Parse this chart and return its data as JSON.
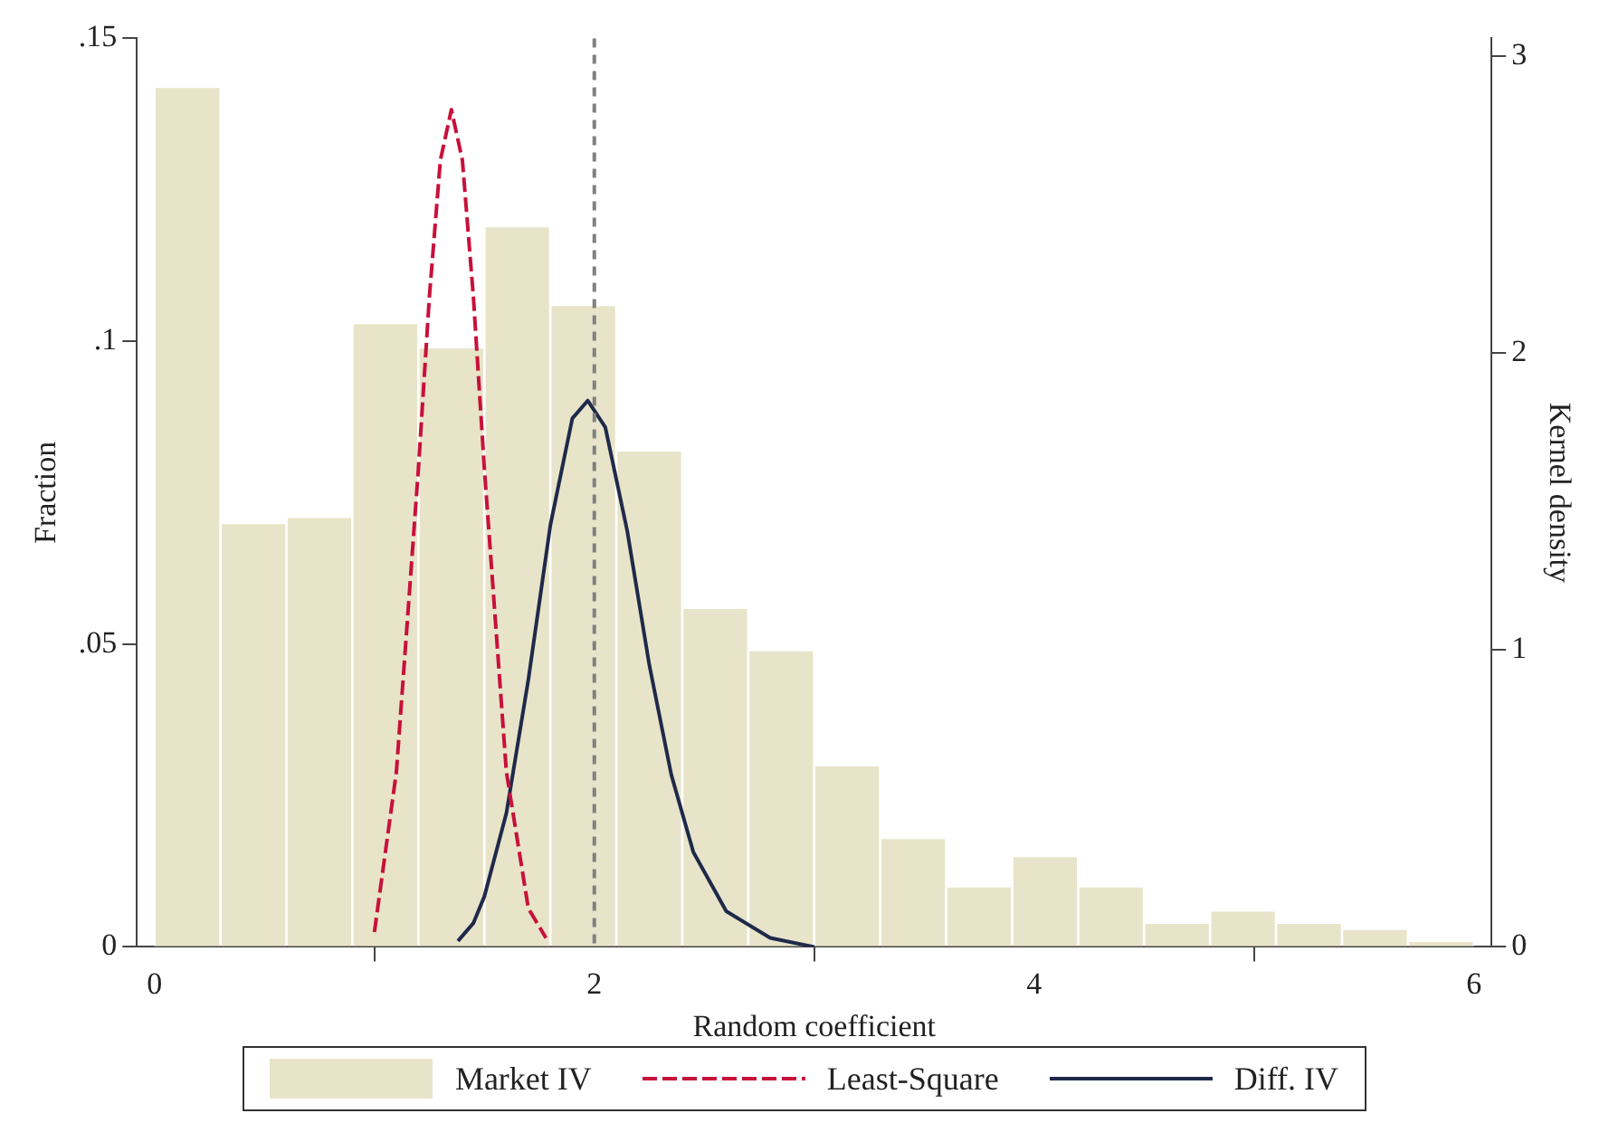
{
  "chart_data": {
    "type": "histogram",
    "xlabel": "Random coefficient",
    "ylabel": "Fraction",
    "y2label": "Kernel density",
    "bins": [
      0,
      0.3,
      0.6,
      0.9,
      1.2,
      1.5,
      1.8,
      2.1,
      2.4,
      2.7,
      3.0,
      3.3,
      3.6,
      3.9,
      4.2,
      4.5,
      4.8,
      5.1,
      5.4,
      5.7,
      6.0
    ],
    "series": [
      {
        "name": "Market IV",
        "color": "#e8e4c9",
        "values": [
          0.142,
          0.07,
          0.071,
          0.103,
          0.099,
          0.119,
          0.106,
          0.082,
          0.056,
          0.049,
          0.03,
          0.018,
          0.01,
          0.015,
          0.01,
          0.004,
          0.006,
          0.004,
          0.003,
          0.001
        ]
      },
      {
        "name": "Least-Square",
        "type": "line",
        "axis": "y2",
        "color": "#c8103a",
        "line_style": "dashed",
        "x": [
          1.0,
          1.1,
          1.2,
          1.25,
          1.3,
          1.35,
          1.4,
          1.45,
          1.5,
          1.6,
          1.7,
          1.78
        ],
        "values": [
          0.05,
          0.59,
          1.61,
          2.19,
          2.65,
          2.82,
          2.65,
          2.19,
          1.61,
          0.59,
          0.13,
          0.03
        ]
      },
      {
        "name": "Diff. IV",
        "type": "line",
        "axis": "y2",
        "color": "#1f2a4a",
        "line_style": "solid",
        "x": [
          1.38,
          1.45,
          1.5,
          1.6,
          1.7,
          1.8,
          1.9,
          1.97,
          2.05,
          2.15,
          2.25,
          2.35,
          2.45,
          2.6,
          2.8,
          3.0
        ],
        "values": [
          0.02,
          0.08,
          0.17,
          0.45,
          0.9,
          1.42,
          1.78,
          1.84,
          1.75,
          1.4,
          0.95,
          0.58,
          0.32,
          0.12,
          0.03,
          0.0
        ]
      }
    ],
    "xlim": [
      -0.08,
      6.08
    ],
    "xticks": [
      0,
      2,
      4,
      6
    ],
    "ylim": [
      0,
      0.15
    ],
    "yticks": [
      0,
      {
        "value": 0.05,
        "label": ".05"
      },
      {
        "value": 0.1,
        "label": ".1"
      },
      {
        "value": 0.15,
        "label": ".15"
      }
    ],
    "y2lim": [
      0,
      3.06
    ],
    "y2ticks": [
      0,
      1,
      2,
      3
    ],
    "ref_lines": [
      {
        "axis": "x",
        "value": 2,
        "color": "#808080",
        "line_style": "dashed"
      }
    ],
    "marker": "none",
    "legend": "bottom"
  }
}
